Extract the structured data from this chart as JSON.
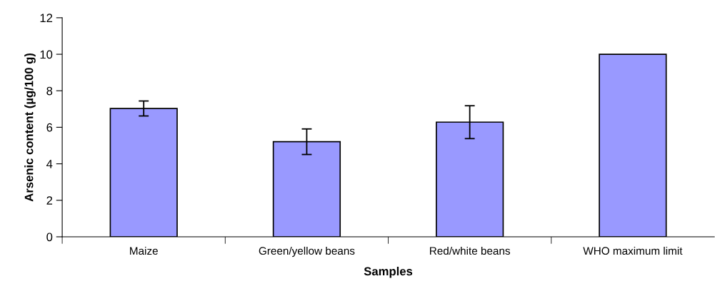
{
  "chart_data": {
    "type": "bar",
    "xlabel": "Samples",
    "ylabel": "Arsenic content (µg/100 g)",
    "categories": [
      "Maize",
      "Green/yellow beans",
      "Red/white beans",
      "WHO maximum limit"
    ],
    "values": [
      7.03,
      5.21,
      6.28,
      10.0
    ],
    "errors": [
      0.41,
      0.7,
      0.9,
      null
    ],
    "color": "#9999ff",
    "ylim": [
      0,
      12
    ],
    "yticks": [
      0,
      2,
      4,
      6,
      8,
      10,
      12
    ],
    "grid": false
  }
}
